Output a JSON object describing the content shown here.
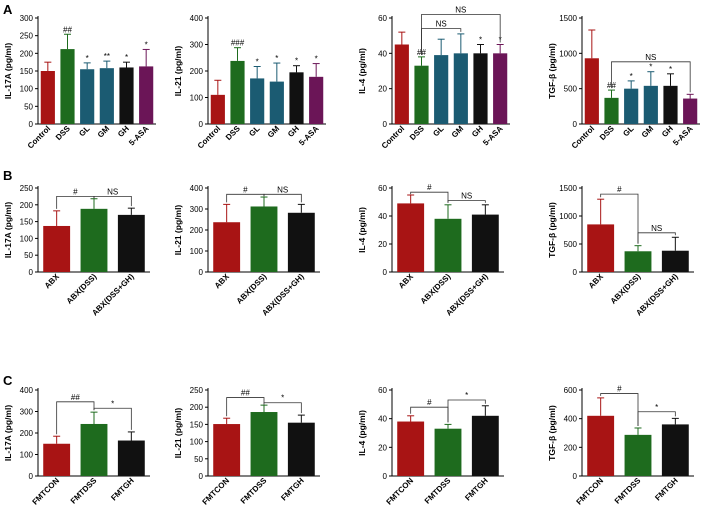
{
  "palette": {
    "red": "#a81414",
    "green": "#1e6b1e",
    "teal": "#1b5b72",
    "black": "#111111",
    "purple": "#6b1557"
  },
  "rows": [
    {
      "letter": "A",
      "letter_y": 14,
      "categories": [
        "Control",
        "DSS",
        "GL",
        "GM",
        "GH",
        "5-ASA"
      ],
      "colors": [
        "red",
        "green",
        "teal",
        "teal",
        "black",
        "purple"
      ]
    },
    {
      "letter": "B",
      "letter_y": 180,
      "categories": [
        "ABX",
        "ABX(DSS)",
        "ABX(DSS+GH)"
      ],
      "colors": [
        "red",
        "green",
        "black"
      ]
    },
    {
      "letter": "C",
      "letter_y": 385,
      "categories": [
        "FMTCON",
        "FMTDSS",
        "FMTGH"
      ],
      "colors": [
        "red",
        "green",
        "black"
      ]
    }
  ],
  "chart_data": [
    {
      "type": "bar",
      "row": 0,
      "ylabel": "IL-17A (pg/ml)",
      "ylim": [
        0,
        300
      ],
      "yticks": [
        0,
        50,
        100,
        150,
        200,
        250,
        300
      ],
      "values": [
        150,
        212,
        155,
        158,
        160,
        163
      ],
      "errors": [
        25,
        42,
        18,
        20,
        15,
        48
      ],
      "labels": [
        "",
        "##",
        "*",
        "**",
        "*",
        "*"
      ],
      "brackets": []
    },
    {
      "type": "bar",
      "row": 0,
      "ylabel": "IL-21 (pg/ml)",
      "ylim": [
        0,
        400
      ],
      "yticks": [
        0,
        100,
        200,
        300,
        400
      ],
      "values": [
        110,
        238,
        172,
        160,
        195,
        178
      ],
      "errors": [
        55,
        50,
        45,
        70,
        25,
        50
      ],
      "labels": [
        "",
        "###",
        "*",
        "*",
        "*",
        "*"
      ],
      "brackets": []
    },
    {
      "type": "bar",
      "row": 0,
      "ylabel": "IL-4 (pg/ml)",
      "ylim": [
        0,
        60
      ],
      "yticks": [
        0,
        20,
        40,
        60
      ],
      "values": [
        45,
        33,
        39,
        40,
        40,
        40
      ],
      "errors": [
        7,
        5,
        9,
        11,
        5,
        5
      ],
      "labels": [
        "",
        "##",
        "",
        "",
        "*",
        "*"
      ],
      "brackets": [
        {
          "from": 1,
          "to": 3,
          "label": "NS",
          "y": 54
        },
        {
          "from": 1,
          "to": 5,
          "label": "NS",
          "y": 62
        }
      ]
    },
    {
      "type": "bar",
      "row": 0,
      "ylabel": "TGF-β (pg/ml)",
      "ylim": [
        0,
        1500
      ],
      "yticks": [
        0,
        500,
        1000,
        1500
      ],
      "values": [
        930,
        370,
        500,
        540,
        540,
        360
      ],
      "errors": [
        400,
        110,
        110,
        200,
        170,
        60
      ],
      "labels": [
        "",
        "##",
        "*",
        "*",
        "*",
        ""
      ],
      "brackets": [
        {
          "from": 1,
          "to": 5,
          "label": "NS",
          "y": 880
        }
      ]
    },
    {
      "type": "bar",
      "row": 1,
      "ylabel": "IL-17A (pg/ml)",
      "ylim": [
        0,
        250
      ],
      "yticks": [
        0,
        50,
        100,
        150,
        200,
        250
      ],
      "values": [
        137,
        188,
        170
      ],
      "errors": [
        45,
        30,
        20
      ],
      "labels": [
        "",
        "",
        ""
      ],
      "brackets": [
        {
          "from": 0,
          "to": 1,
          "label": "#",
          "y": 225
        },
        {
          "from": 1,
          "to": 2,
          "label": "NS",
          "y": 225
        }
      ]
    },
    {
      "type": "bar",
      "row": 1,
      "ylabel": "IL-21 (pg/ml)",
      "ylim": [
        0,
        400
      ],
      "yticks": [
        0,
        100,
        200,
        300,
        400
      ],
      "values": [
        237,
        312,
        282
      ],
      "errors": [
        85,
        45,
        40
      ],
      "labels": [
        "",
        "",
        ""
      ],
      "brackets": [
        {
          "from": 0,
          "to": 1,
          "label": "#",
          "y": 370
        },
        {
          "from": 1,
          "to": 2,
          "label": "NS",
          "y": 370
        }
      ]
    },
    {
      "type": "bar",
      "row": 1,
      "ylabel": "IL-4 (pg/ml)",
      "ylim": [
        0,
        60
      ],
      "yticks": [
        0,
        20,
        40,
        60
      ],
      "values": [
        49,
        38,
        41
      ],
      "errors": [
        6,
        10,
        7
      ],
      "labels": [
        "",
        "",
        ""
      ],
      "brackets": [
        {
          "from": 0,
          "to": 1,
          "label": "#",
          "y": 57
        },
        {
          "from": 1,
          "to": 2,
          "label": "NS",
          "y": 51
        }
      ]
    },
    {
      "type": "bar",
      "row": 1,
      "ylabel": "TGF-β (pg/ml)",
      "ylim": [
        0,
        1500
      ],
      "yticks": [
        0,
        500,
        1000,
        1500
      ],
      "values": [
        850,
        370,
        380
      ],
      "errors": [
        450,
        100,
        240
      ],
      "labels": [
        "",
        "",
        ""
      ],
      "brackets": [
        {
          "from": 0,
          "to": 1,
          "label": "#",
          "y": 1390
        },
        {
          "from": 1,
          "to": 2,
          "label": "NS",
          "y": 700
        }
      ]
    },
    {
      "type": "bar",
      "row": 2,
      "ylabel": "IL-17A (pg/ml)",
      "ylim": [
        0,
        400
      ],
      "yticks": [
        0,
        100,
        200,
        300,
        400
      ],
      "values": [
        150,
        242,
        165
      ],
      "errors": [
        35,
        55,
        40
      ],
      "labels": [
        "",
        "",
        ""
      ],
      "brackets": [
        {
          "from": 0,
          "to": 1,
          "label": "##",
          "y": 345
        },
        {
          "from": 1,
          "to": 2,
          "label": "*",
          "y": 315
        }
      ]
    },
    {
      "type": "bar",
      "row": 2,
      "ylabel": "IL-21 (pg/ml)",
      "ylim": [
        0,
        250
      ],
      "yticks": [
        0,
        50,
        100,
        150,
        200,
        250
      ],
      "values": [
        151,
        186,
        155
      ],
      "errors": [
        17,
        20,
        22
      ],
      "labels": [
        "",
        "",
        ""
      ],
      "brackets": [
        {
          "from": 0,
          "to": 1,
          "label": "##",
          "y": 228
        },
        {
          "from": 1,
          "to": 2,
          "label": "*",
          "y": 213
        }
      ]
    },
    {
      "type": "bar",
      "row": 2,
      "ylabel": "IL-4 (pg/ml)",
      "ylim": [
        0,
        60
      ],
      "yticks": [
        0,
        20,
        40,
        60
      ],
      "values": [
        38,
        33,
        42
      ],
      "errors": [
        4,
        3,
        7
      ],
      "labels": [
        "",
        "",
        ""
      ],
      "brackets": [
        {
          "from": 0,
          "to": 1,
          "label": "#",
          "y": 48
        },
        {
          "from": 1,
          "to": 2,
          "label": "*",
          "y": 53
        }
      ]
    },
    {
      "type": "bar",
      "row": 2,
      "ylabel": "TGF-β (pg/ml)",
      "ylim": [
        0,
        600
      ],
      "yticks": [
        0,
        200,
        400,
        600
      ],
      "values": [
        420,
        287,
        360
      ],
      "errors": [
        125,
        48,
        42
      ],
      "labels": [
        "",
        "",
        ""
      ],
      "brackets": [
        {
          "from": 0,
          "to": 1,
          "label": "#",
          "y": 575
        },
        {
          "from": 1,
          "to": 2,
          "label": "*",
          "y": 448
        }
      ]
    }
  ]
}
